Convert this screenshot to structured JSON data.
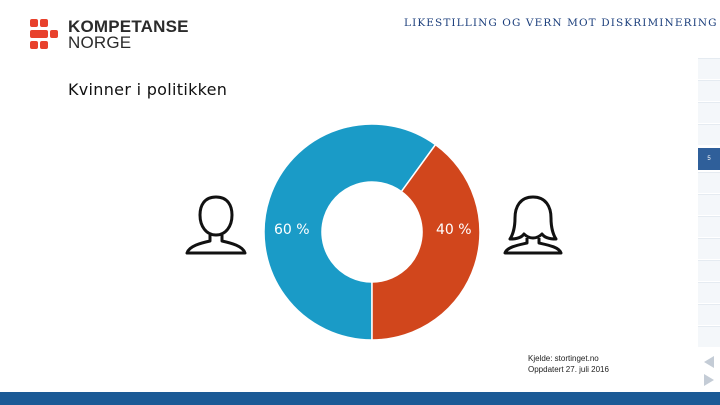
{
  "header": {
    "logo_line1": "KOMPETANSE",
    "logo_line2": "NORGE",
    "title": "LIKESTILLING OG VERN MOT DISKRIMINERING"
  },
  "slide": {
    "title": "Kvinner i politikken",
    "page_number": "5"
  },
  "chart_data": {
    "type": "pie",
    "title": "",
    "categories": [
      "Menn",
      "Kvinner"
    ],
    "values": [
      60,
      40
    ],
    "labels": [
      "60 %",
      "40 %"
    ],
    "colors": [
      "#1a9bc7",
      "#d1461c"
    ],
    "donut": true
  },
  "source": {
    "line1": "Kjelde: stortinget.no",
    "line2": "Oppdatert 27. juli 2016"
  },
  "icons": {
    "left": "male-person-icon",
    "right": "female-person-icon"
  },
  "colors": {
    "footer": "#1b5a96",
    "logo": "#e8412c",
    "title": "#1c3f7c"
  }
}
